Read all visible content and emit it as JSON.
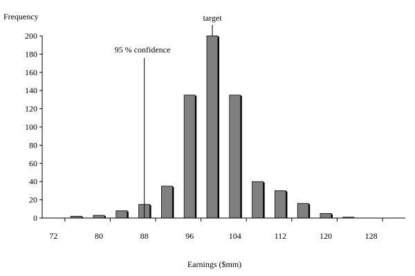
{
  "chart_data": {
    "type": "bar",
    "ylabel": "Frequency",
    "xlabel": "Earnings ($mm)",
    "ylim": [
      0,
      200
    ],
    "yticks": [
      0,
      20,
      40,
      60,
      80,
      100,
      120,
      140,
      160,
      180,
      200
    ],
    "x_tick_labels": [
      "72",
      "80",
      "88",
      "96",
      "104",
      "112",
      "120",
      "128"
    ],
    "grid": false,
    "legend": "none",
    "bar_color": "#808080",
    "categories": [
      "76",
      "80",
      "84",
      "88",
      "92",
      "96",
      "100",
      "104",
      "108",
      "112",
      "116",
      "120",
      "124"
    ],
    "values": [
      2,
      3,
      8,
      15,
      35,
      135,
      200,
      135,
      40,
      30,
      16,
      5,
      1
    ],
    "annotations": [
      {
        "text": "target",
        "x": 100
      },
      {
        "text": "95 %  confidence",
        "x": 88
      }
    ]
  }
}
